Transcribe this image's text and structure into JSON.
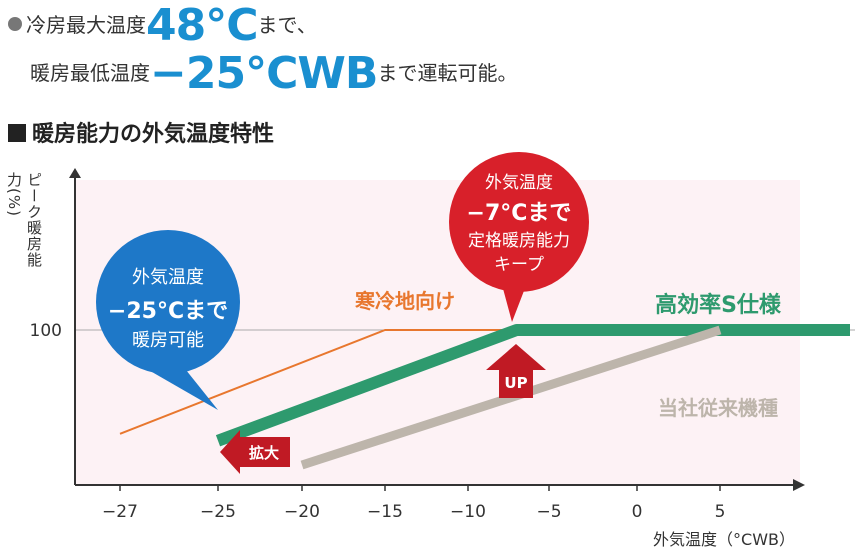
{
  "headline": {
    "line1_prefix": "冷房最大温度",
    "line1_value": "48°C",
    "line1_suffix": "まで、",
    "line2_prefix": "暖房最低温度",
    "line2_value": "−25°CWB",
    "line2_suffix": "まで運転可能。"
  },
  "section_title": "暖房能力の外気温度特性",
  "colors": {
    "plot_bg": "#fdf2f5",
    "cold_region": "#e8772e",
    "high_eff": "#2e9a6e",
    "company": "#bdb5ab",
    "blue_bubble": "#1e78c8",
    "red_bubble": "#d8202a",
    "arrow": "#c01a24"
  },
  "chart_data": {
    "type": "line",
    "ylabel": "ピーク暖房能力(%)",
    "xlabel": "外気温度（°CWB）",
    "x_ticks": [
      "−27",
      "−25",
      "−20",
      "−15",
      "−10",
      "−5",
      "0",
      "5"
    ],
    "y_ticks": [
      "100"
    ],
    "xlim": [
      -29,
      10
    ],
    "ylim": [
      55,
      115
    ],
    "series": [
      {
        "name": "寒冷地向け",
        "x": [
          -27,
          -15,
          10
        ],
        "y": [
          70,
          100,
          100
        ]
      },
      {
        "name": "高効率S仕様",
        "x": [
          -25,
          -7,
          10
        ],
        "y": [
          68,
          100,
          100
        ]
      },
      {
        "name": "当社従来機種",
        "x": [
          -20,
          5
        ],
        "y": [
          61,
          100
        ]
      }
    ],
    "annotations": {
      "blue_bubble": [
        "外気温度",
        "−25°Cまで",
        "暖房可能"
      ],
      "red_bubble": [
        "外気温度",
        "−7°Cまで",
        "定格暖房能力",
        "キープ"
      ],
      "up_arrow": "UP",
      "left_arrow": "拡大"
    }
  }
}
